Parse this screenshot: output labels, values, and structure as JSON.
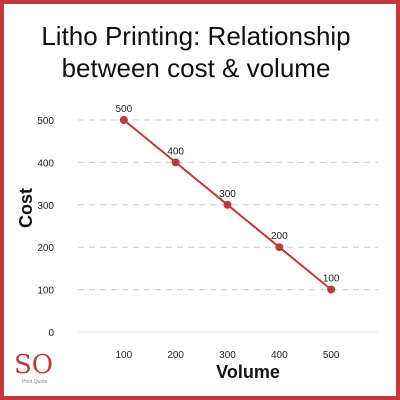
{
  "chart_data": {
    "type": "line",
    "title": [
      "Litho Printing: Relationship",
      "between cost & volume"
    ],
    "xlabel": "Volume",
    "ylabel": "Cost",
    "x": [
      100,
      200,
      300,
      400,
      500
    ],
    "series": [
      {
        "values": [
          500,
          400,
          300,
          200,
          100
        ],
        "labels": [
          "500",
          "400",
          "300",
          "200",
          "100"
        ]
      }
    ],
    "x_ticks": [
      "100",
      "200",
      "300",
      "400",
      "500"
    ],
    "y_ticks": [
      "0",
      "100",
      "200",
      "300",
      "400",
      "500"
    ],
    "xlim": [
      0,
      600
    ],
    "ylim": [
      0,
      500
    ],
    "grid": "horizontal dashed",
    "colors": {
      "line": "#c0393b",
      "frame": "#c0393b",
      "grid": "#cccccc"
    }
  },
  "logo": {
    "text": "SO",
    "tagline": "Print Quote"
  }
}
